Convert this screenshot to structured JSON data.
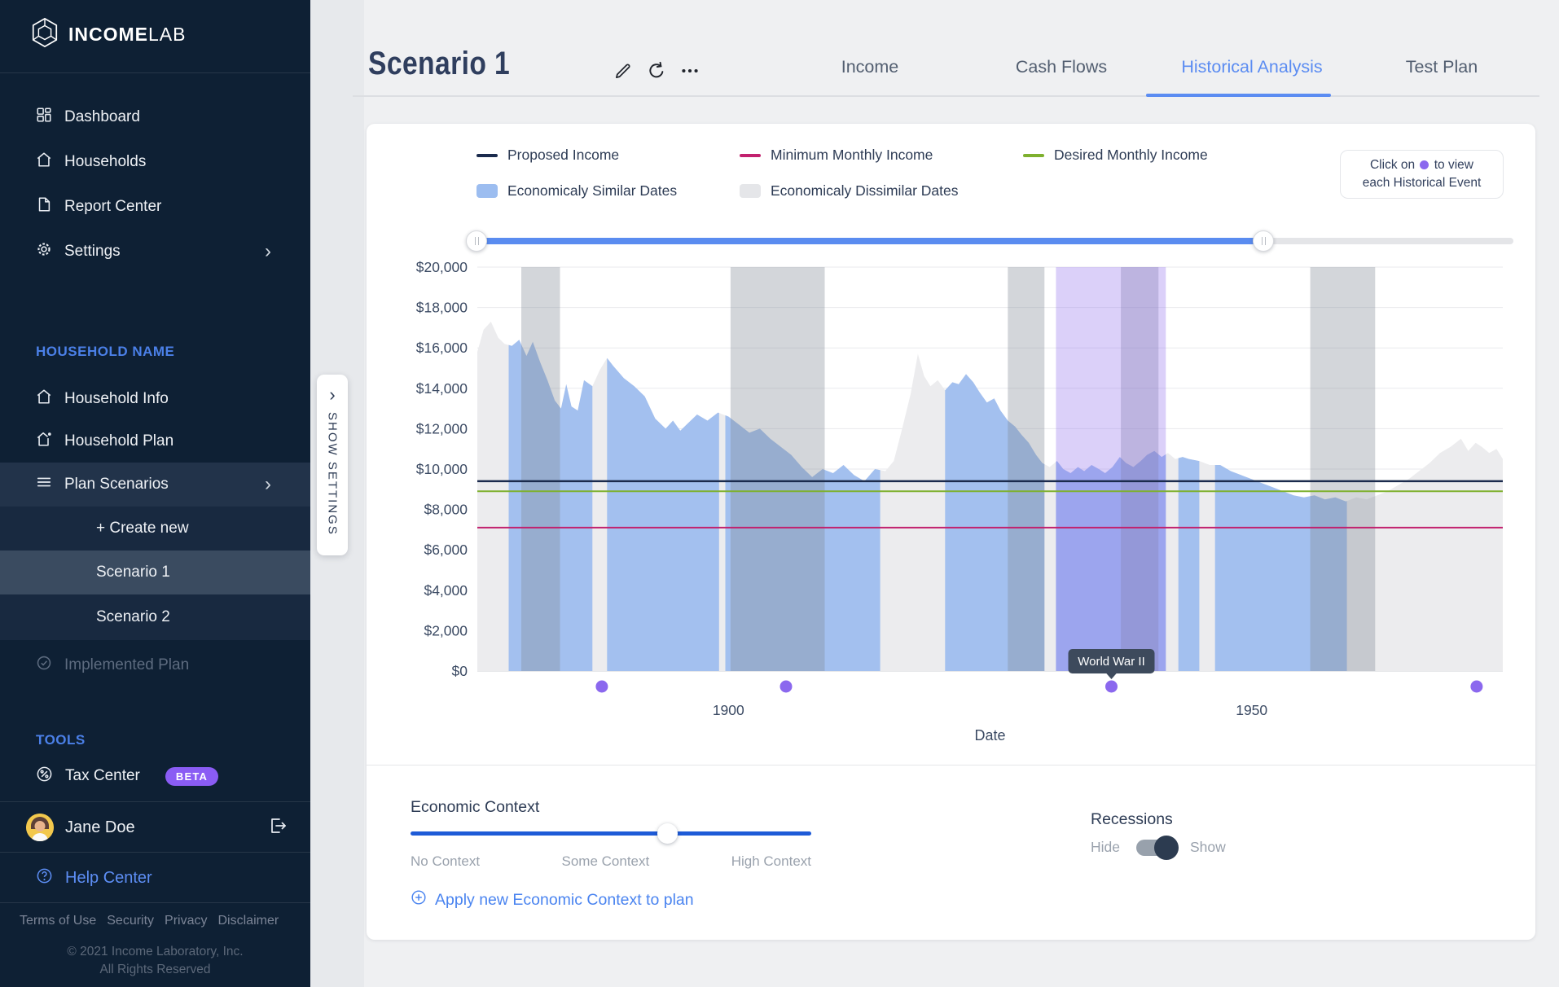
{
  "sidebar": {
    "logo": {
      "bold": "INCOME",
      "light": "LAB"
    },
    "nav": [
      {
        "label": "Dashboard",
        "icon": "dashboard-grid-icon"
      },
      {
        "label": "Households",
        "icon": "home-icon"
      },
      {
        "label": "Report Center",
        "icon": "document-icon"
      },
      {
        "label": "Settings",
        "icon": "gear-icon"
      }
    ],
    "household_label": "HOUSEHOLD NAME",
    "household_nav": [
      {
        "label": "Household Info",
        "icon": "home-icon"
      },
      {
        "label": "Household Plan",
        "icon": "home-star-icon"
      },
      {
        "label": "Plan Scenarios",
        "icon": "menu-lines-icon"
      }
    ],
    "scenarios": [
      {
        "label": "+ Create new"
      },
      {
        "label": "Scenario 1",
        "selected": true
      },
      {
        "label": "Scenario 2"
      }
    ],
    "implemented_plan": "Implemented Plan",
    "tools_label": "TOOLS",
    "tax_center": "Tax Center",
    "beta": "BETA",
    "user_name": "Jane Doe",
    "help_center": "Help Center",
    "footer_links": [
      "Terms of Use",
      "Security",
      "Privacy",
      "Disclaimer"
    ],
    "copyright1": "© 2021 Income Laboratory, Inc.",
    "copyright2": "All Rights Reserved"
  },
  "header": {
    "title": "Scenario 1",
    "tabs": [
      {
        "label": "Income"
      },
      {
        "label": "Cash Flows"
      },
      {
        "label": "Historical Analysis",
        "active": true
      },
      {
        "label": "Test Plan"
      }
    ]
  },
  "show_settings": "SHOW SETTINGS",
  "panel": {
    "legend": [
      {
        "label": "Proposed Income",
        "type": "line",
        "color": "#1b2b4d"
      },
      {
        "label": "Minimum Monthly Income",
        "type": "line",
        "color": "#c2216e"
      },
      {
        "label": "Desired Monthly Income",
        "type": "line",
        "color": "#7eb02e"
      },
      {
        "label": "Economicaly Similar Dates",
        "type": "box",
        "color": "#9cbdf0"
      },
      {
        "label": "Economicaly Dissimilar Dates",
        "type": "box",
        "color": "#e5e6e9"
      }
    ],
    "hint": {
      "pre": "Click on",
      "post": "to view",
      "line2": "each Historical Event"
    }
  },
  "controls": {
    "economic_context": {
      "title": "Economic Context",
      "labels": [
        "No Context",
        "Some Context",
        "High Context"
      ],
      "value_percent": 64,
      "apply_label": "Apply new Economic Context to plan"
    },
    "recessions": {
      "title": "Recessions",
      "hide": "Hide",
      "show": "Show",
      "state": "Show"
    }
  },
  "chart_data": {
    "type": "area",
    "xlabel": "Date",
    "x_ticks": [
      1900,
      1950
    ],
    "year_range": [
      1876,
      1974
    ],
    "ylim": [
      0,
      20000
    ],
    "y_tick_step": 2000,
    "y_tick_format": "$#,###",
    "series": [
      {
        "name": "Historical Monthly Income",
        "points": [
          [
            1876,
            15800
          ],
          [
            1876.6,
            16900
          ],
          [
            1877.3,
            17300
          ],
          [
            1878,
            16500
          ],
          [
            1878.6,
            16200
          ],
          [
            1879.3,
            16100
          ],
          [
            1880,
            16400
          ],
          [
            1880.7,
            15600
          ],
          [
            1881.3,
            16300
          ],
          [
            1882,
            15300
          ],
          [
            1882.7,
            14400
          ],
          [
            1883.4,
            13400
          ],
          [
            1884,
            13000
          ],
          [
            1884.5,
            14200
          ],
          [
            1885,
            13100
          ],
          [
            1885.6,
            12900
          ],
          [
            1886.2,
            14400
          ],
          [
            1887,
            14100
          ],
          [
            1887.7,
            14900
          ],
          [
            1888.4,
            15500
          ],
          [
            1889,
            15100
          ],
          [
            1890,
            14500
          ],
          [
            1891,
            14100
          ],
          [
            1892,
            13600
          ],
          [
            1893,
            12500
          ],
          [
            1894,
            12000
          ],
          [
            1894.7,
            12400
          ],
          [
            1895.4,
            11900
          ],
          [
            1896,
            12200
          ],
          [
            1897,
            12700
          ],
          [
            1898,
            12400
          ],
          [
            1899,
            12800
          ],
          [
            1900,
            12600
          ],
          [
            1901,
            12200
          ],
          [
            1902,
            11800
          ],
          [
            1903,
            12000
          ],
          [
            1904,
            11500
          ],
          [
            1905,
            11100
          ],
          [
            1906,
            10700
          ],
          [
            1907,
            10100
          ],
          [
            1908,
            9600
          ],
          [
            1909,
            10000
          ],
          [
            1910,
            9800
          ],
          [
            1911,
            10200
          ],
          [
            1912,
            9700
          ],
          [
            1913,
            9400
          ],
          [
            1914,
            10000
          ],
          [
            1915,
            9900
          ],
          [
            1915.8,
            10400
          ],
          [
            1916.6,
            12000
          ],
          [
            1917.4,
            13700
          ],
          [
            1918.1,
            15700
          ],
          [
            1918.7,
            14600
          ],
          [
            1919.3,
            14100
          ],
          [
            1920,
            14400
          ],
          [
            1920.7,
            13900
          ],
          [
            1921.4,
            14300
          ],
          [
            1922,
            14200
          ],
          [
            1922.7,
            14700
          ],
          [
            1923.4,
            14300
          ],
          [
            1924,
            13800
          ],
          [
            1924.7,
            13300
          ],
          [
            1925.4,
            13500
          ],
          [
            1926,
            12900
          ],
          [
            1926.7,
            12400
          ],
          [
            1927.4,
            12100
          ],
          [
            1928,
            11700
          ],
          [
            1928.7,
            11300
          ],
          [
            1929.4,
            10700
          ],
          [
            1930,
            10300
          ],
          [
            1930.7,
            10100
          ],
          [
            1931.4,
            10400
          ],
          [
            1932,
            10000
          ],
          [
            1932.7,
            9800
          ],
          [
            1933.4,
            10100
          ],
          [
            1934,
            9900
          ],
          [
            1934.7,
            10200
          ],
          [
            1935.4,
            10000
          ],
          [
            1936,
            9800
          ],
          [
            1936.7,
            10100
          ],
          [
            1937.4,
            10600
          ],
          [
            1938,
            10300
          ],
          [
            1938.7,
            10100
          ],
          [
            1939.4,
            10400
          ],
          [
            1940,
            10700
          ],
          [
            1940.7,
            10900
          ],
          [
            1941.4,
            10600
          ],
          [
            1942,
            10800
          ],
          [
            1942.7,
            10500
          ],
          [
            1943.4,
            10600
          ],
          [
            1944,
            10500
          ],
          [
            1945,
            10400
          ],
          [
            1946,
            10200
          ],
          [
            1947,
            10200
          ],
          [
            1948,
            9900
          ],
          [
            1949,
            9700
          ],
          [
            1950,
            9500
          ],
          [
            1951,
            9300
          ],
          [
            1952,
            9100
          ],
          [
            1953,
            8900
          ],
          [
            1954,
            8700
          ],
          [
            1955,
            8600
          ],
          [
            1956,
            8700
          ],
          [
            1957,
            8500
          ],
          [
            1958,
            8600
          ],
          [
            1959,
            8400
          ],
          [
            1960,
            8600
          ],
          [
            1961,
            8500
          ],
          [
            1962,
            8700
          ],
          [
            1963,
            8900
          ],
          [
            1964,
            9200
          ],
          [
            1965,
            9500
          ],
          [
            1966,
            9900
          ],
          [
            1967,
            10300
          ],
          [
            1968,
            10800
          ],
          [
            1969,
            11100
          ],
          [
            1970,
            11500
          ],
          [
            1970.7,
            10900
          ],
          [
            1971.4,
            11300
          ],
          [
            1972,
            11100
          ],
          [
            1972.7,
            10800
          ],
          [
            1973.4,
            11000
          ],
          [
            1974,
            10500
          ]
        ]
      }
    ],
    "reference_lines": [
      {
        "name": "Proposed Income",
        "value": 9400,
        "color": "#1b2b4d",
        "width": 2.5
      },
      {
        "name": "Desired Monthly Income",
        "value": 8900,
        "color": "#7eb02e",
        "width": 2
      },
      {
        "name": "Minimum Monthly Income",
        "value": 7100,
        "color": "#c2216e",
        "width": 2
      }
    ],
    "similar_regions": [
      [
        1879.0,
        1887.0
      ],
      [
        1888.4,
        1899.1
      ],
      [
        1899.7,
        1914.5
      ],
      [
        1920.7,
        1930.2
      ],
      [
        1931.3,
        1941.8
      ],
      [
        1943.0,
        1945.0
      ],
      [
        1946.5,
        1959.1
      ]
    ],
    "recession_bands": [
      [
        1880.2,
        1883.9
      ],
      [
        1900.2,
        1909.2
      ],
      [
        1926.7,
        1930.2
      ],
      [
        1937.5,
        1941.1
      ],
      [
        1955.6,
        1961.8
      ]
    ],
    "event_highlight": {
      "range": [
        1931.3,
        1941.8
      ],
      "label": "World War II",
      "dot_year": 1936.6
    },
    "event_dots": [
      1887.9,
      1905.5,
      1936.6,
      1971.5
    ],
    "colors": {
      "similar": "#a3c0ef",
      "dissimilar": "#ececee",
      "recession": "rgba(128,138,150,0.35)",
      "highlight": "rgba(142,110,235,0.32)",
      "dot": "#8b68ee",
      "grid": "#e9eaed",
      "axis": "#cfd2d6"
    },
    "legend_position": "top",
    "grid": true
  }
}
